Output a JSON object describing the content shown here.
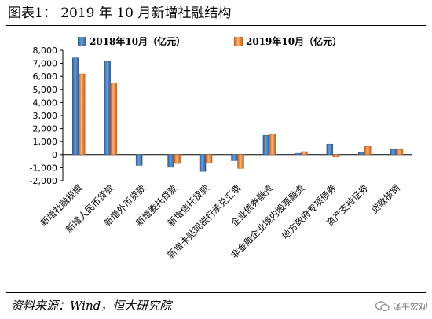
{
  "header": {
    "title": "图表1： 2019 年 10 月新增社融结构"
  },
  "footer": {
    "source": "资料来源：Wind，恒大研究院",
    "watermark": "泽平宏观"
  },
  "colors": {
    "series_2018": "#4F81BD",
    "series_2018_dark": "#2E5A8C",
    "series_2019": "#F79646",
    "series_2019_dark": "#C0611C"
  },
  "chart_data": {
    "type": "bar",
    "title": "",
    "xlabel": "",
    "ylabel": "",
    "ylim": [
      -2000,
      8000
    ],
    "yticks": [
      -2000,
      -1000,
      0,
      1000,
      2000,
      3000,
      4000,
      5000,
      6000,
      7000,
      8000
    ],
    "ytick_labels": [
      "-2,000",
      "-1,000",
      "0",
      "1,000",
      "2,000",
      "3,000",
      "4,000",
      "5,000",
      "6,000",
      "7,000",
      "8,000"
    ],
    "legend_position": "top",
    "grid": false,
    "categories": [
      "新增社融规模",
      "新增人民币贷款",
      "新增外币贷款",
      "新增委托贷款",
      "新增信托贷款",
      "新增未贴现银行承兑汇票",
      "企业债券融资",
      "非金融企业境内股票融资",
      "地方政府专项债券",
      "资产支持证券",
      "贷款核销"
    ],
    "series": [
      {
        "name": "2018年10月（亿元）",
        "values": [
          7420,
          7150,
          -820,
          -970,
          -1290,
          -460,
          1480,
          100,
          820,
          170,
          390
        ]
      },
      {
        "name": "2019年10月（亿元）",
        "values": [
          6190,
          5490,
          0,
          -680,
          -620,
          -1060,
          1580,
          230,
          -180,
          630,
          390
        ]
      }
    ]
  }
}
